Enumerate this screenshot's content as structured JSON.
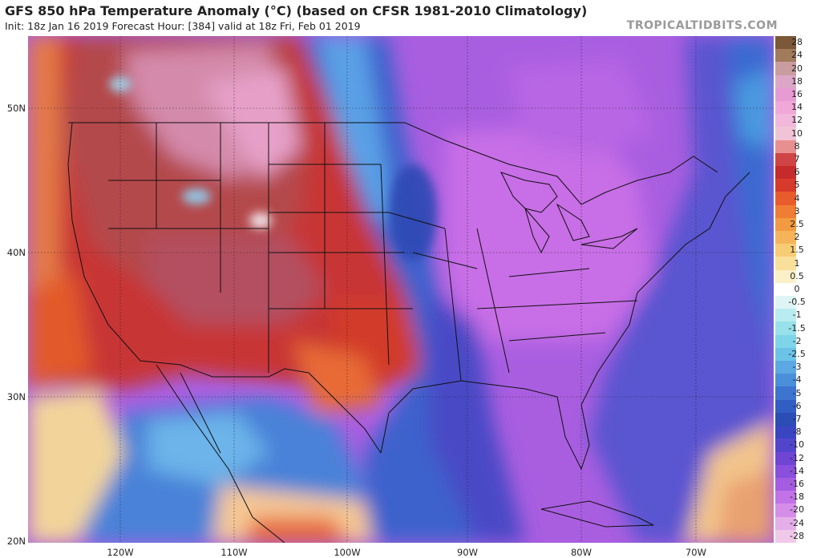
{
  "header": {
    "title": "GFS 850 hPa Temperature Anomaly (°C) (based on CFSR 1981-2010 Climatology)",
    "subtitle": "Init: 18z Jan 16 2019   Forecast Hour: [384]   valid at 18z Fri, Feb 01 2019",
    "site": "TROPICALTIDBITS.COM"
  },
  "map": {
    "lat_labels": [
      "50N",
      "40N",
      "30N",
      "20N"
    ],
    "lon_labels": [
      "120W",
      "110W",
      "100W",
      "90W",
      "80W",
      "70W"
    ]
  },
  "colorbar": {
    "labels": [
      "28",
      "24",
      "20",
      "18",
      "16",
      "14",
      "12",
      "10",
      "8",
      "7",
      "6",
      "5",
      "4",
      "3",
      "2.5",
      "2",
      "1.5",
      "1",
      "0.5",
      "0",
      "-0.5",
      "-1",
      "-1.5",
      "-2",
      "-2.5",
      "-3",
      "-4",
      "-5",
      "-6",
      "-7",
      "-8",
      "-10",
      "-12",
      "-14",
      "-16",
      "-18",
      "-20",
      "-24",
      "-28"
    ],
    "colors": [
      "#7a5838",
      "#a27a5c",
      "#c99ca0",
      "#dca7c6",
      "#e69bd2",
      "#f0a8d8",
      "#f2b8dc",
      "#f0c4d6",
      "#e89090",
      "#cf4545",
      "#c62b2b",
      "#d63a2a",
      "#e85b2d",
      "#ef7d34",
      "#f29a42",
      "#f5b459",
      "#f7cc75",
      "#f8e09a",
      "#fbf0c7",
      "#ffffff",
      "#dff5f5",
      "#b8ecf0",
      "#98e1ea",
      "#7ed5ea",
      "#6cc3e8",
      "#5ba8e2",
      "#4a8fda",
      "#3d74d0",
      "#325ec4",
      "#2b4db5",
      "#3a45c2",
      "#5245cc",
      "#7045d4",
      "#8a4fdc",
      "#a45de0",
      "#c072e6",
      "#d58ee8",
      "#e4aee8",
      "#f0c8ea"
    ]
  }
}
